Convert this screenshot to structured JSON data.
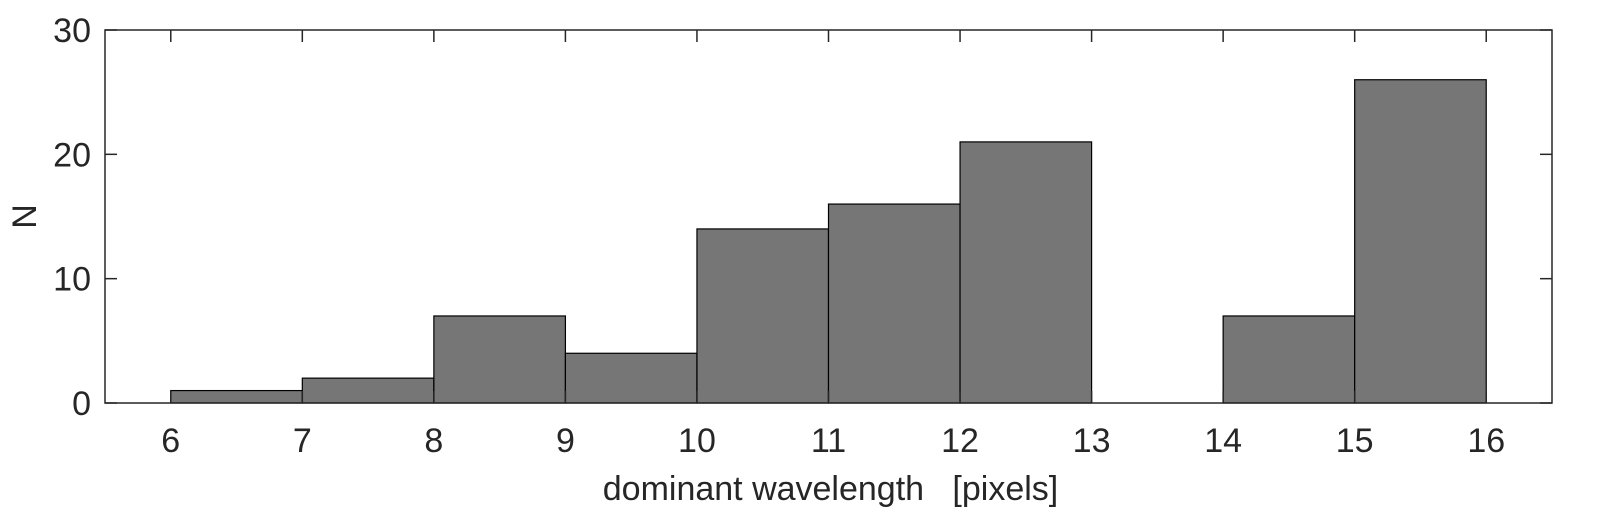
{
  "chart_data": {
    "type": "bar",
    "title": "",
    "xlabel": "dominant wavelength   [pixels]",
    "ylabel": "N",
    "xlim": [
      5.5,
      16.5
    ],
    "ylim": [
      0,
      30
    ],
    "xticks": [
      6,
      7,
      8,
      9,
      10,
      11,
      12,
      13,
      14,
      15,
      16
    ],
    "yticks": [
      0,
      10,
      20,
      30
    ],
    "bin_edges": [
      6,
      7,
      8,
      9,
      10,
      11,
      12,
      13,
      14,
      15,
      16
    ],
    "values": [
      1,
      2,
      7,
      4,
      14,
      16,
      21,
      0,
      7,
      26
    ],
    "bar_color": "#767676",
    "grid": false,
    "legend": "none"
  }
}
